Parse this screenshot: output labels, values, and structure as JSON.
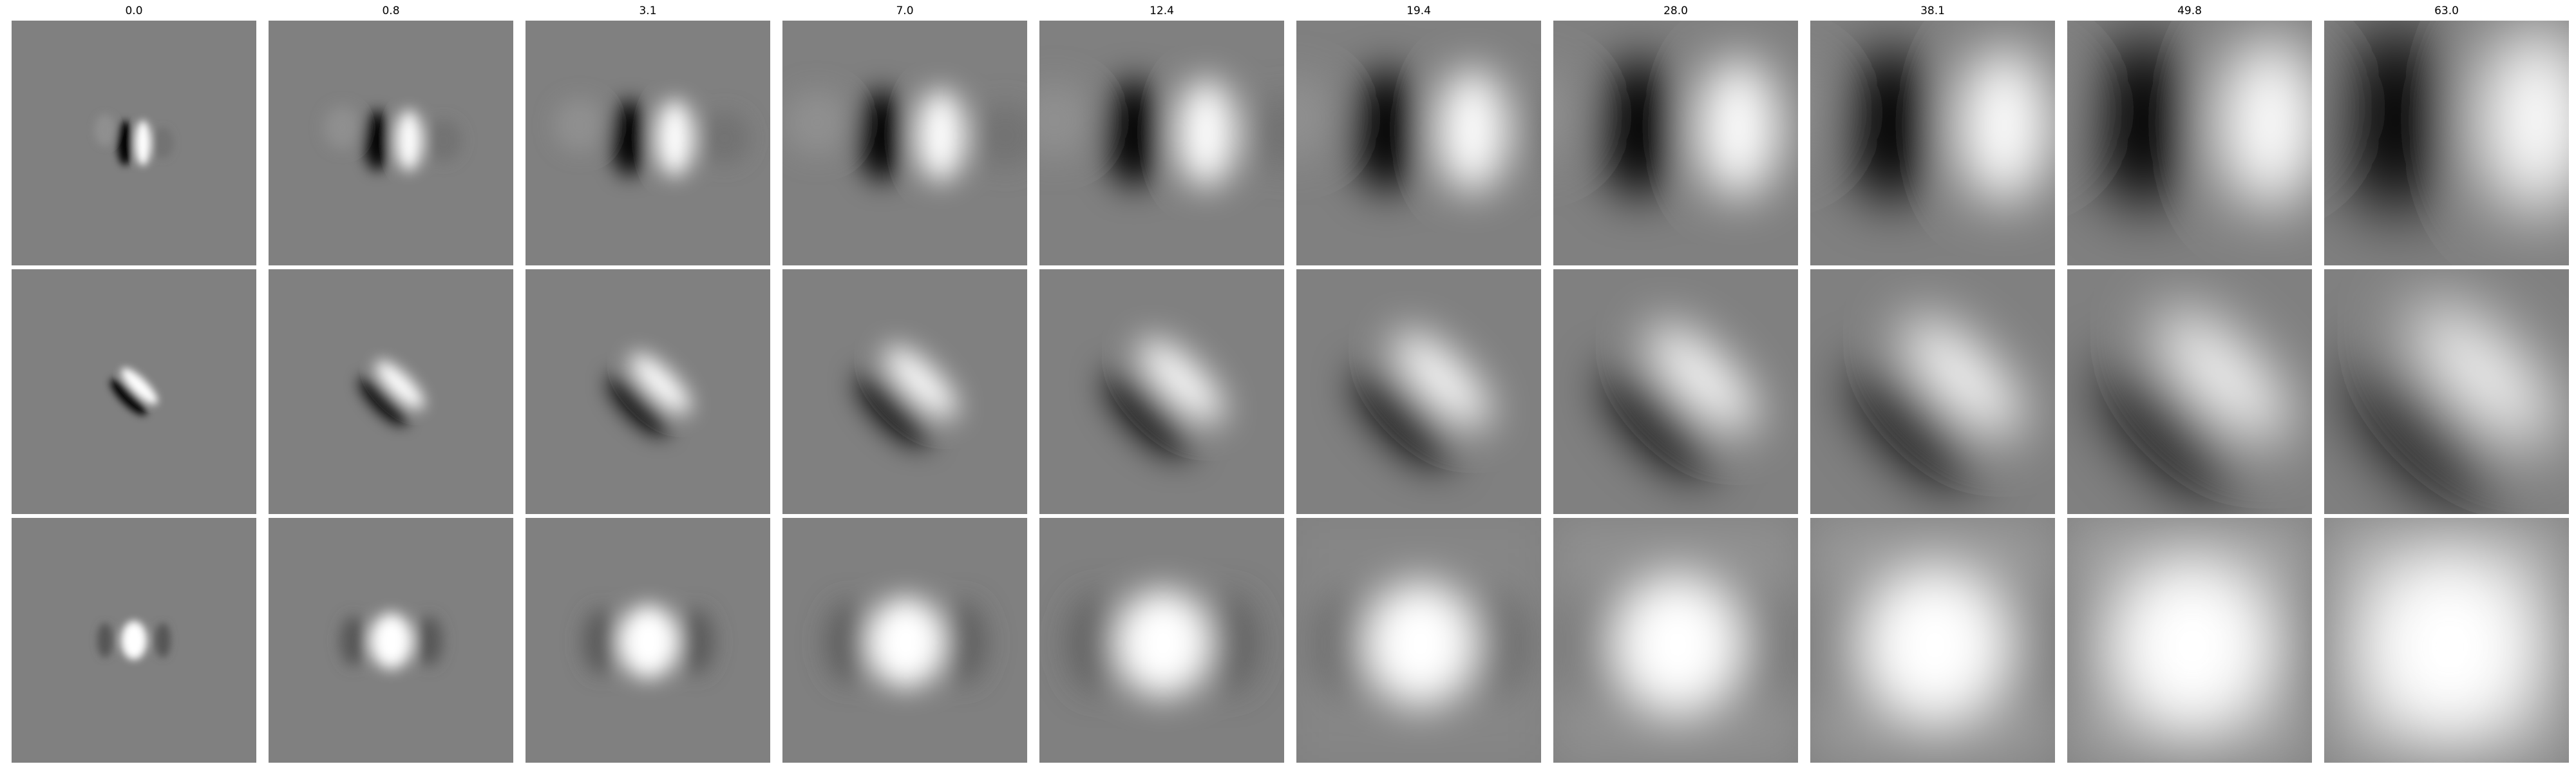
{
  "figure": {
    "column_titles": [
      "0.0",
      "0.8",
      "3.1",
      "7.0",
      "12.4",
      "19.4",
      "28.0",
      "38.1",
      "49.8",
      "63.0"
    ],
    "rows": 3,
    "colormap": "grayscale",
    "background_gray": "#808080",
    "row_patterns": [
      "vertical dark-left / bright-right odd-symmetric lobe pair, spreading with scale",
      "diagonal dark / bright lobe pair oriented top-left to bottom-right, spreading with scale",
      "central bright even-symmetric blob with faint dark flanks, spreading with scale"
    ]
  }
}
